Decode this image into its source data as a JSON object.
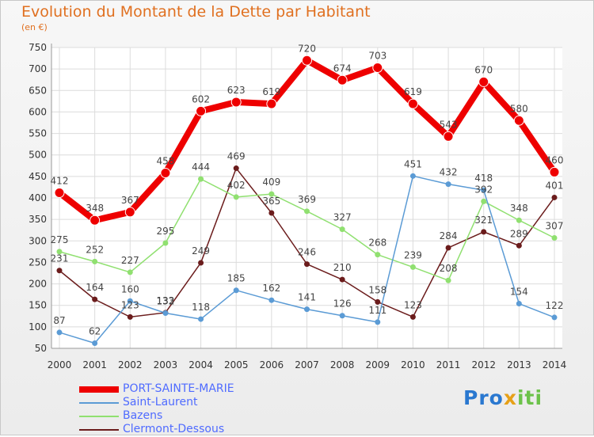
{
  "title": "Evolution du Montant de la Dette par Habitant",
  "subtitle": "(en €)",
  "logo_text": "Proxiti",
  "chart_data": {
    "type": "line",
    "title": "Evolution du Montant de la Dette par Habitant",
    "subtitle": "(en €)",
    "x": [
      "2000",
      "2001",
      "2002",
      "2003",
      "2004",
      "2005",
      "2006",
      "2007",
      "2008",
      "2009",
      "2010",
      "2011",
      "2012",
      "2013",
      "2014"
    ],
    "y_ticks": [
      50,
      100,
      150,
      200,
      250,
      300,
      350,
      400,
      450,
      500,
      550,
      600,
      650,
      700,
      750
    ],
    "ylim": [
      50,
      750
    ],
    "grid": true,
    "legend_position": "bottom-left",
    "series": [
      {
        "name": "PORT-SAINTE-MARIE",
        "color": "#ee0000",
        "values": [
          412,
          348,
          367,
          458,
          602,
          623,
          619,
          720,
          674,
          703,
          619,
          543,
          670,
          580,
          460
        ]
      },
      {
        "name": "Saint-Laurent",
        "color": "#5b9bd5",
        "values": [
          87,
          62,
          160,
          132,
          118,
          185,
          162,
          141,
          126,
          111,
          451,
          432,
          418,
          154,
          122
        ]
      },
      {
        "name": "Bazens",
        "color": "#90e070",
        "values": [
          275,
          252,
          227,
          295,
          444,
          402,
          409,
          369,
          327,
          268,
          239,
          208,
          392,
          348,
          307
        ]
      },
      {
        "name": "Clermont-Dessous",
        "color": "#6b1c1c",
        "values": [
          231,
          164,
          123,
          133,
          249,
          469,
          365,
          246,
          210,
          158,
          123,
          284,
          321,
          289,
          401
        ]
      }
    ]
  }
}
